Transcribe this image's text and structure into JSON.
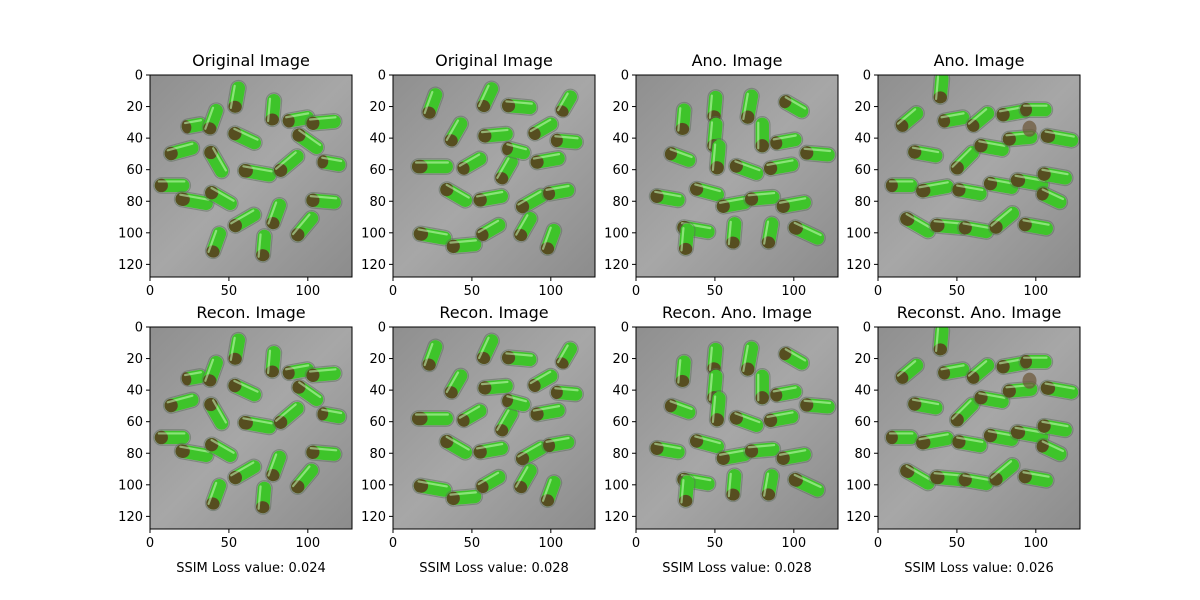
{
  "figure": {
    "panels": [
      {
        "title": "Original Image",
        "xlabel": ""
      },
      {
        "title": "Original Image",
        "xlabel": ""
      },
      {
        "title": "Ano. Image",
        "xlabel": ""
      },
      {
        "title": "Ano. Image",
        "xlabel": ""
      },
      {
        "title": "Recon. Image",
        "xlabel": "SSIM Loss value: 0.024"
      },
      {
        "title": "Recon. Image",
        "xlabel": "SSIM Loss value: 0.028"
      },
      {
        "title": "Recon. Ano. Image",
        "xlabel": "SSIM Loss value: 0.028"
      },
      {
        "title": "Reconst. Ano. Image",
        "xlabel": "SSIM Loss value: 0.026"
      }
    ]
  },
  "chart_data": {
    "type": "image_grid",
    "rows": 2,
    "cols": 4,
    "image_size": [
      128,
      128
    ],
    "xticks": [
      0,
      50,
      100
    ],
    "yticks": [
      0,
      20,
      40,
      60,
      80,
      100,
      120
    ],
    "xlim": [
      0,
      128
    ],
    "ylim": [
      128,
      0
    ],
    "ssim_loss_values": [
      0.024,
      0.028,
      0.028,
      0.026
    ],
    "colors": {
      "capsule_green": "#3ec42a",
      "capsule_dark": "#5a3a1e",
      "background_gray": "#9a9a9a"
    }
  }
}
